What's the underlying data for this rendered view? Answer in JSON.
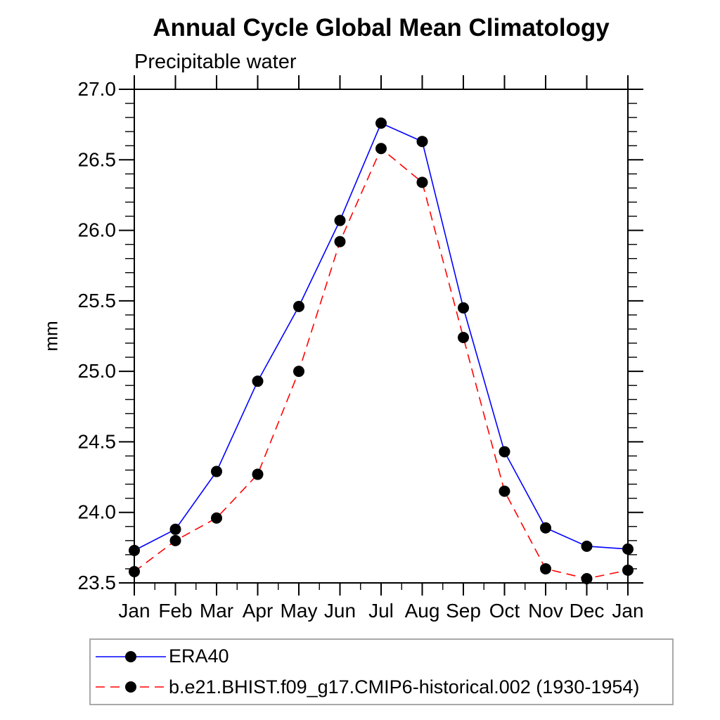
{
  "title": "Annual Cycle Global Mean Climatology",
  "subtitle": "Precipitable water",
  "ylabel": "mm",
  "chart_data": {
    "type": "line",
    "categories": [
      "Jan",
      "Feb",
      "Mar",
      "Apr",
      "May",
      "Jun",
      "Jul",
      "Aug",
      "Sep",
      "Oct",
      "Nov",
      "Dec",
      "Jan"
    ],
    "xlabel": "",
    "ylabel": "mm",
    "ylim": [
      23.5,
      27.0
    ],
    "y_major_step": 0.5,
    "y_minor_step": 0.1,
    "x_minor_step": 0.5,
    "y_tick_labels": [
      "23.5",
      "24.0",
      "24.5",
      "25.0",
      "25.5",
      "26.0",
      "26.5",
      "27.0"
    ],
    "grid": false,
    "legend_position": "bottom-left-outside",
    "axis_color": "#000000",
    "series": [
      {
        "name": "ERA40",
        "color": "#0000ff",
        "line_style": "solid",
        "marker": "circle",
        "marker_color": "#000000",
        "values": [
          23.73,
          23.88,
          24.29,
          24.93,
          25.46,
          26.07,
          26.76,
          26.63,
          25.45,
          24.43,
          23.89,
          23.76,
          23.74
        ]
      },
      {
        "name": "b.e21.BHIST.f09_g17.CMIP6-historical.002 (1930-1954)",
        "color": "#ff0000",
        "line_style": "dashed",
        "marker": "circle",
        "marker_color": "#000000",
        "values": [
          23.58,
          23.8,
          23.96,
          24.27,
          25.0,
          25.92,
          26.58,
          26.34,
          25.24,
          24.15,
          23.6,
          23.53,
          23.59
        ]
      }
    ]
  }
}
